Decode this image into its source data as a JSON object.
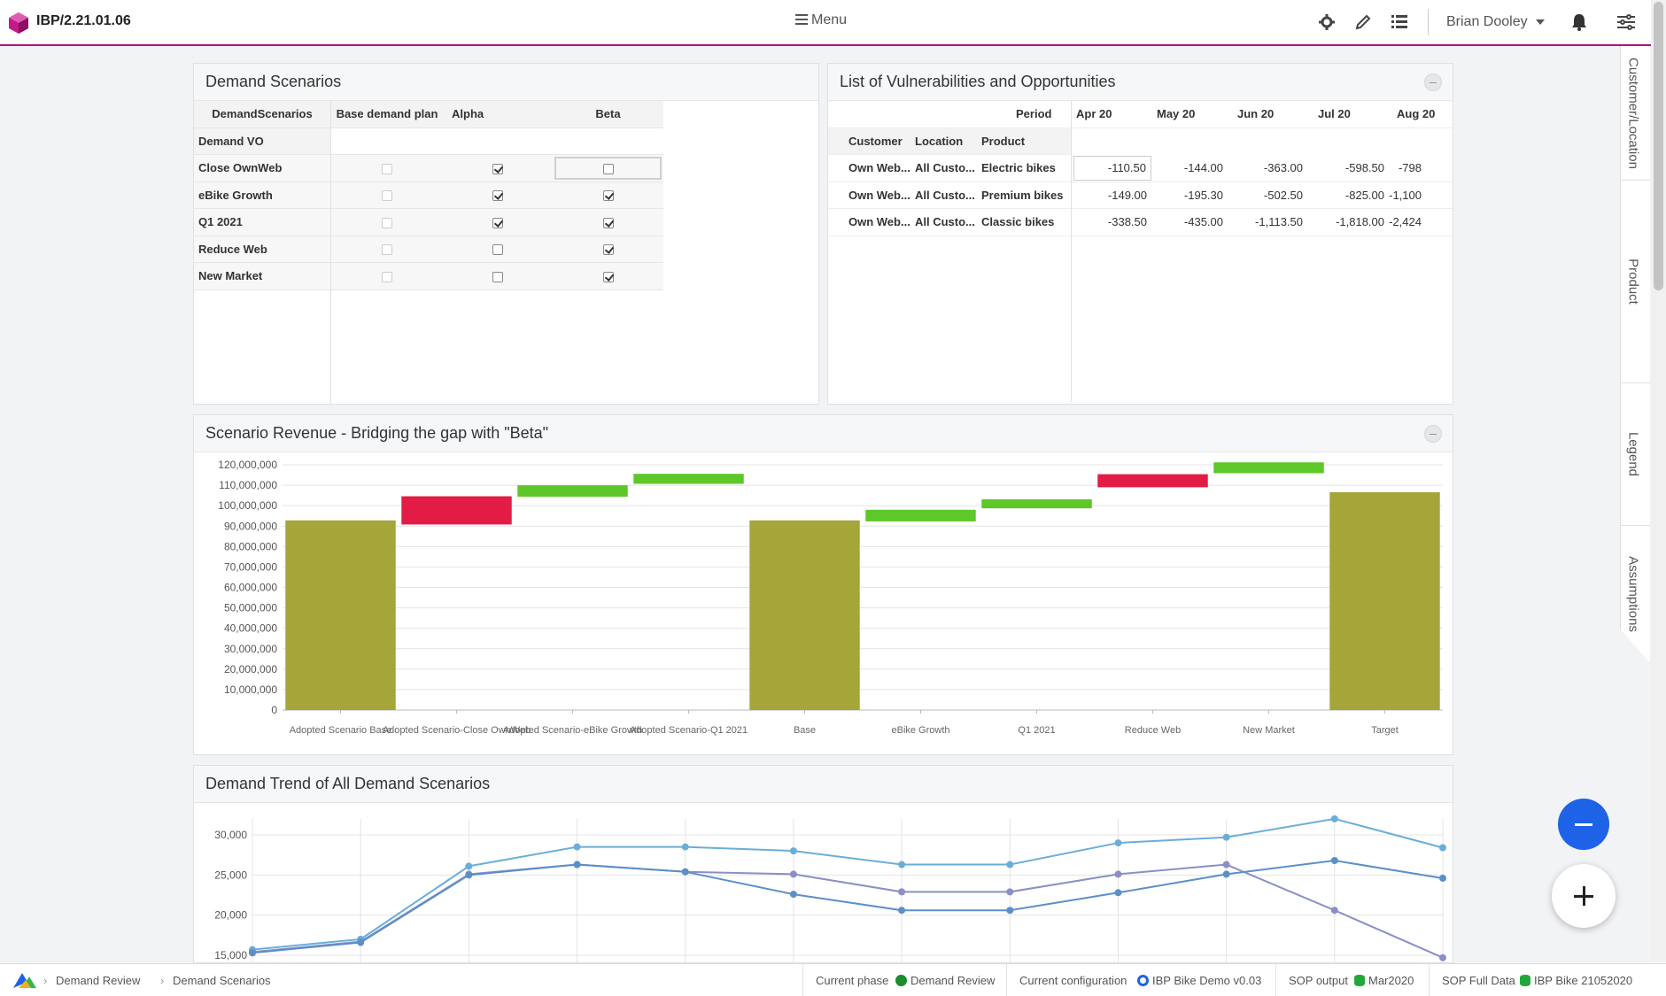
{
  "header": {
    "app_version": "IBP/2.21.01.06",
    "menu_label": "Menu",
    "user_name": "Brian Dooley",
    "icons": [
      "gear-icon",
      "pencil-icon",
      "list-icon",
      "bell-icon",
      "sliders-icon"
    ]
  },
  "demand_scenarios": {
    "title": "Demand Scenarios",
    "columns": [
      "DemandScenarios",
      "Base demand plan",
      "Alpha",
      "Beta"
    ],
    "group_label": "Demand VO",
    "rows": [
      {
        "name": "Close OwnWeb",
        "base": false,
        "alpha": true,
        "beta": false
      },
      {
        "name": "eBike Growth",
        "base": false,
        "alpha": true,
        "beta": true
      },
      {
        "name": "Q1 2021",
        "base": false,
        "alpha": true,
        "beta": true
      },
      {
        "name": "Reduce Web",
        "base": false,
        "alpha": false,
        "beta": true
      },
      {
        "name": "New Market",
        "base": false,
        "alpha": false,
        "beta": true
      }
    ]
  },
  "vulnerabilities": {
    "title": "List of Vulnerabilities and Opportunities",
    "period_label": "Period",
    "periods": [
      "Apr 20",
      "May 20",
      "Jun 20",
      "Jul 20",
      "Aug 20"
    ],
    "dim_headers": [
      "Customer",
      "Location",
      "Product"
    ],
    "rows": [
      {
        "customer": "Own Web...",
        "location": "All Custo...",
        "product": "Electric bikes",
        "values": [
          "-110.50",
          "-144.00",
          "-363.00",
          "-598.50",
          "-798"
        ]
      },
      {
        "customer": "Own Web...",
        "location": "All Custo...",
        "product": "Premium bikes",
        "values": [
          "-149.00",
          "-195.30",
          "-502.50",
          "-825.00",
          "-1,100"
        ]
      },
      {
        "customer": "Own Web...",
        "location": "All Custo...",
        "product": "Classic bikes",
        "values": [
          "-338.50",
          "-435.00",
          "-1,113.50",
          "-1,818.00",
          "-2,424"
        ]
      }
    ]
  },
  "revenue_panel": {
    "title": "Scenario Revenue - Bridging the gap with \"Beta\""
  },
  "trend_panel": {
    "title": "Demand Trend of All Demand Scenarios"
  },
  "chart_data": [
    {
      "type": "bar",
      "subtype": "waterfall",
      "title": "Scenario Revenue - Bridging the gap with \"Beta\"",
      "categories": [
        "Adopted Scenario Base",
        "Adopted Scenario-Close OwnWeb",
        "Adopted Scenario-eBike Growth",
        "Adopted Scenario-Q1 2021",
        "Base",
        "eBike Growth",
        "Q1 2021",
        "Reduce Web",
        "New Market",
        "Target"
      ],
      "bars": [
        {
          "kind": "total",
          "low": 0,
          "high": 92800000
        },
        {
          "kind": "decrease",
          "low": 90800000,
          "high": 104600000
        },
        {
          "kind": "increase",
          "low": 104400000,
          "high": 110000000
        },
        {
          "kind": "increase",
          "low": 110700000,
          "high": 115600000
        },
        {
          "kind": "total",
          "low": 0,
          "high": 92800000
        },
        {
          "kind": "increase",
          "low": 92300000,
          "high": 98000000
        },
        {
          "kind": "increase",
          "low": 98700000,
          "high": 103100000
        },
        {
          "kind": "decrease",
          "low": 109000000,
          "high": 115400000
        },
        {
          "kind": "increase",
          "low": 115900000,
          "high": 121200000
        },
        {
          "kind": "total",
          "low": 0,
          "high": 106600000
        }
      ],
      "y_ticks": [
        "0",
        "10,000,000",
        "20,000,000",
        "30,000,000",
        "40,000,000",
        "50,000,000",
        "60,000,000",
        "70,000,000",
        "80,000,000",
        "90,000,000",
        "100,000,000",
        "110,000,000",
        "120,000,000"
      ],
      "ylim": [
        0,
        120000000
      ],
      "colors": {
        "total": "#a5a53a",
        "increase": "#5ec72a",
        "decrease": "#e21c45"
      }
    },
    {
      "type": "line",
      "title": "Demand Trend of All Demand Scenarios",
      "x_count": 12,
      "y_ticks": [
        "15,000",
        "20,000",
        "25,000",
        "30,000"
      ],
      "ylim": [
        14000,
        31500
      ],
      "series": [
        {
          "values": [
            15700,
            17000,
            26100,
            28500,
            28500,
            28000,
            26300,
            26300,
            29000,
            29700,
            32000,
            28400
          ],
          "color": "#6aaed8"
        },
        {
          "values": [
            15400,
            16700,
            25100,
            26300,
            25400,
            25100,
            22900,
            22900,
            25100,
            26300,
            20600,
            14700
          ],
          "color": "#8a8fc5"
        },
        {
          "values": [
            15300,
            16600,
            25000,
            26300,
            25400,
            22600,
            20600,
            20600,
            22800,
            25100,
            26800,
            24600
          ],
          "color": "#5b8fc8"
        }
      ]
    }
  ],
  "side_tabs": [
    "Customer/Location",
    "Product",
    "Legend",
    "Assumptions"
  ],
  "footer": {
    "breadcrumb": [
      "Demand Review",
      "Demand Scenarios"
    ],
    "phase_label": "Current phase",
    "phase_value": "Demand Review",
    "config_label": "Current configuration",
    "config_value": "IBP Bike Demo v0.03",
    "sop_label": "SOP output",
    "sop_value": "Mar2020",
    "full_label": "SOP Full Data",
    "full_value": "IBP Bike 21052020"
  }
}
